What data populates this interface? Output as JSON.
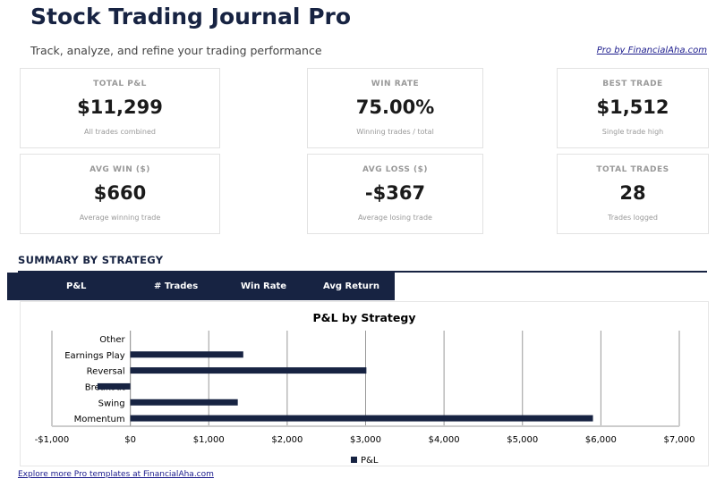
{
  "header": {
    "title": "Stock Trading Journal Pro",
    "subtitle": "Track, analyze, and refine your trading performance",
    "pro_link": "Pro by FinancialAha.com"
  },
  "cards": [
    {
      "label": "TOTAL P&L",
      "value": "$11,299",
      "sub": "All trades combined"
    },
    {
      "label": "WIN RATE",
      "value": "75.00%",
      "sub": "Winning trades / total"
    },
    {
      "label": "BEST TRADE",
      "value": "$1,512",
      "sub": "Single trade high"
    },
    {
      "label": "AVG WIN ($)",
      "value": "$660",
      "sub": "Average winning trade"
    },
    {
      "label": "AVG LOSS ($)",
      "value": "-$367",
      "sub": "Average losing trade"
    },
    {
      "label": "TOTAL TRADES",
      "value": "28",
      "sub": "Trades logged"
    }
  ],
  "summary": {
    "title": "SUMMARY BY STRATEGY",
    "columns": [
      "P&L",
      "# Trades",
      "Win Rate",
      "Avg Return"
    ]
  },
  "chart_data": {
    "type": "bar",
    "orientation": "horizontal",
    "title": "P&L by Strategy",
    "categories": [
      "Momentum",
      "Swing",
      "Breakout",
      "Reversal",
      "Earnings Play",
      "Other"
    ],
    "series": [
      {
        "name": "P&L",
        "values": [
          5899,
          1370,
          -420,
          3010,
          1440,
          0
        ],
        "color": "#172342"
      }
    ],
    "xlim": [
      -1000,
      7000
    ],
    "xticks": [
      "-$1,000",
      "$0",
      "$1,000",
      "$2,000",
      "$3,000",
      "$4,000",
      "$5,000",
      "$6,000",
      "$7,000"
    ],
    "grid": true,
    "legend": "bottom"
  },
  "footer": {
    "link": "Explore more Pro templates at FinancialAha.com"
  }
}
